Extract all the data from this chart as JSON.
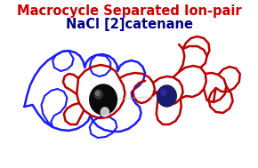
{
  "title_line1": "Macrocycle Separated Ion-pair",
  "title_line2": "NaCl [2]catenane",
  "title_line1_color": "#cc0000",
  "title_line2_color": "#00008b",
  "background_color": "#ffffff",
  "blue_ring_color": "#1a1aff",
  "red_structure_color": "#bb0000",
  "black_sphere_color": "#0a0a0a",
  "navy_sphere_color": "#1a1a6e",
  "fig_width": 2.9,
  "fig_height": 1.89,
  "dpi": 100
}
